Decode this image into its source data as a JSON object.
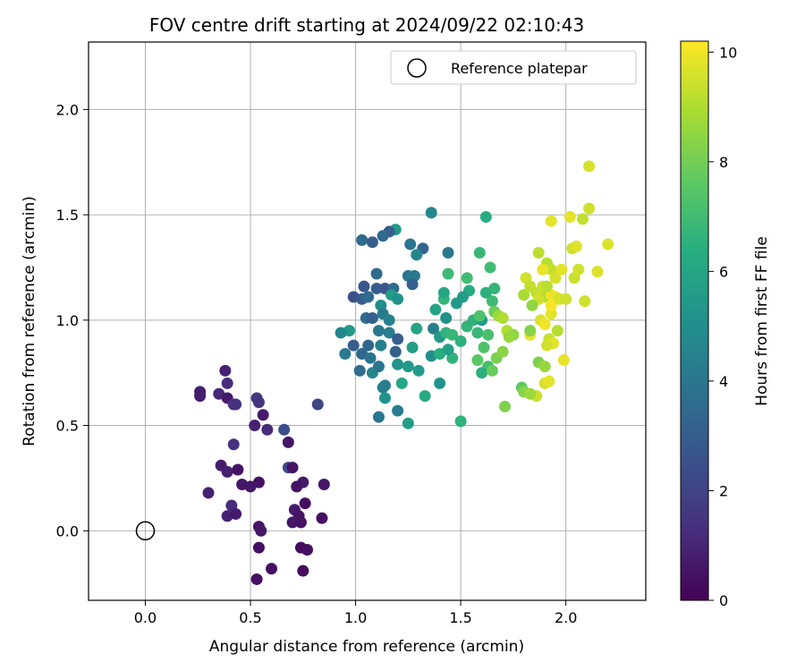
{
  "chart_data": {
    "type": "scatter",
    "title": "FOV centre drift starting at 2024/09/22 02:10:43",
    "xlabel": "Angular distance from reference (arcmin)",
    "ylabel": "Rotation from reference (arcmin)",
    "xlim": [
      -0.27,
      2.38
    ],
    "ylim": [
      -0.33,
      2.32
    ],
    "xticks": [
      "0.0",
      "0.5",
      "1.0",
      "1.5",
      "2.0"
    ],
    "yticks": [
      "0.0",
      "0.5",
      "1.0",
      "1.5",
      "2.0"
    ],
    "grid": true,
    "colormap": "viridis",
    "colorbar": {
      "label": "Hours from first FF file",
      "range": [
        0,
        10.2
      ],
      "ticks": [
        "0",
        "2",
        "4",
        "6",
        "8",
        "10"
      ]
    },
    "legend": {
      "position": "top-right",
      "entries": [
        "Reference platepar"
      ]
    },
    "reference_point": {
      "name": "Reference platepar",
      "x": 0.0,
      "y": 0.0,
      "marker": "open-circle"
    },
    "series": [
      {
        "points": [
          {
            "x": 0.26,
            "y": 0.66,
            "c": 0.8
          },
          {
            "x": 0.26,
            "y": 0.64,
            "c": 0.8
          },
          {
            "x": 0.35,
            "y": 0.65,
            "c": 1.1
          },
          {
            "x": 0.38,
            "y": 0.76,
            "c": 0.9
          },
          {
            "x": 0.39,
            "y": 0.7,
            "c": 1.2
          },
          {
            "x": 0.39,
            "y": 0.63,
            "c": 0.7
          },
          {
            "x": 0.43,
            "y": 0.6,
            "c": 1.5
          },
          {
            "x": 0.42,
            "y": 0.6,
            "c": 1.4
          },
          {
            "x": 0.42,
            "y": 0.41,
            "c": 1.4
          },
          {
            "x": 0.53,
            "y": 0.63,
            "c": 1.6
          },
          {
            "x": 0.54,
            "y": 0.61,
            "c": 1.5
          },
          {
            "x": 0.52,
            "y": 0.5,
            "c": 0.9
          },
          {
            "x": 0.56,
            "y": 0.55,
            "c": 0.7
          },
          {
            "x": 0.58,
            "y": 0.48,
            "c": 1.2
          },
          {
            "x": 0.66,
            "y": 0.48,
            "c": 2.4
          },
          {
            "x": 0.82,
            "y": 0.6,
            "c": 2.1
          },
          {
            "x": 0.68,
            "y": 0.42,
            "c": 0.6
          },
          {
            "x": 0.68,
            "y": 0.3,
            "c": 2.3
          },
          {
            "x": 0.7,
            "y": 0.3,
            "c": 0.5
          },
          {
            "x": 0.75,
            "y": 0.23,
            "c": 0.7
          },
          {
            "x": 0.72,
            "y": 0.21,
            "c": 0.5
          },
          {
            "x": 0.85,
            "y": 0.22,
            "c": 0.6
          },
          {
            "x": 0.36,
            "y": 0.31,
            "c": 0.8
          },
          {
            "x": 0.39,
            "y": 0.28,
            "c": 0.9
          },
          {
            "x": 0.44,
            "y": 0.29,
            "c": 0.5
          },
          {
            "x": 0.3,
            "y": 0.18,
            "c": 0.9
          },
          {
            "x": 0.46,
            "y": 0.22,
            "c": 0.6
          },
          {
            "x": 0.5,
            "y": 0.21,
            "c": 0.6
          },
          {
            "x": 0.54,
            "y": 0.23,
            "c": 0.5
          },
          {
            "x": 0.41,
            "y": 0.12,
            "c": 1.2
          },
          {
            "x": 0.39,
            "y": 0.07,
            "c": 0.9
          },
          {
            "x": 0.43,
            "y": 0.08,
            "c": 0.7
          },
          {
            "x": 0.71,
            "y": 0.1,
            "c": 0.7
          },
          {
            "x": 0.76,
            "y": 0.13,
            "c": 0.4
          },
          {
            "x": 0.73,
            "y": 0.07,
            "c": 0.5
          },
          {
            "x": 0.7,
            "y": 0.04,
            "c": 0.6
          },
          {
            "x": 0.74,
            "y": 0.04,
            "c": 0.5
          },
          {
            "x": 0.84,
            "y": 0.06,
            "c": 0.4
          },
          {
            "x": 0.54,
            "y": 0.02,
            "c": 0.5
          },
          {
            "x": 0.55,
            "y": 0.0,
            "c": 0.6
          },
          {
            "x": 0.54,
            "y": -0.08,
            "c": 0.4
          },
          {
            "x": 0.74,
            "y": -0.08,
            "c": 0.3
          },
          {
            "x": 0.77,
            "y": -0.09,
            "c": 0.4
          },
          {
            "x": 0.6,
            "y": -0.18,
            "c": 0.4
          },
          {
            "x": 0.75,
            "y": -0.19,
            "c": 0.3
          },
          {
            "x": 0.53,
            "y": -0.23,
            "c": 0.4
          },
          {
            "x": 1.36,
            "y": 1.51,
            "c": 4.6
          },
          {
            "x": 1.19,
            "y": 1.43,
            "c": 5.4
          },
          {
            "x": 1.16,
            "y": 1.42,
            "c": 3.0
          },
          {
            "x": 1.13,
            "y": 1.4,
            "c": 3.5
          },
          {
            "x": 1.03,
            "y": 1.38,
            "c": 3.5
          },
          {
            "x": 1.08,
            "y": 1.37,
            "c": 3.0
          },
          {
            "x": 1.26,
            "y": 1.36,
            "c": 4.0
          },
          {
            "x": 1.32,
            "y": 1.34,
            "c": 3.3
          },
          {
            "x": 1.29,
            "y": 1.31,
            "c": 4.6
          },
          {
            "x": 1.1,
            "y": 1.22,
            "c": 3.6
          },
          {
            "x": 1.25,
            "y": 1.21,
            "c": 4.0
          },
          {
            "x": 1.28,
            "y": 1.21,
            "c": 4.1
          },
          {
            "x": 1.27,
            "y": 1.17,
            "c": 3.2
          },
          {
            "x": 1.04,
            "y": 1.16,
            "c": 2.8
          },
          {
            "x": 1.1,
            "y": 1.15,
            "c": 3.0
          },
          {
            "x": 1.14,
            "y": 1.15,
            "c": 2.7
          },
          {
            "x": 1.18,
            "y": 1.15,
            "c": 3.5
          },
          {
            "x": 0.99,
            "y": 1.11,
            "c": 2.5
          },
          {
            "x": 1.03,
            "y": 1.1,
            "c": 3.0
          },
          {
            "x": 1.06,
            "y": 1.11,
            "c": 3.5
          },
          {
            "x": 1.17,
            "y": 1.12,
            "c": 5.6
          },
          {
            "x": 1.2,
            "y": 1.1,
            "c": 5.2
          },
          {
            "x": 1.12,
            "y": 1.07,
            "c": 4.9
          },
          {
            "x": 1.05,
            "y": 1.01,
            "c": 3.6
          },
          {
            "x": 1.08,
            "y": 1.01,
            "c": 3.1
          },
          {
            "x": 1.13,
            "y": 1.03,
            "c": 4.2
          },
          {
            "x": 1.16,
            "y": 1.0,
            "c": 4.5
          },
          {
            "x": 0.97,
            "y": 0.95,
            "c": 5.4
          },
          {
            "x": 0.93,
            "y": 0.94,
            "c": 4.7
          },
          {
            "x": 1.11,
            "y": 0.95,
            "c": 4.1
          },
          {
            "x": 1.16,
            "y": 0.94,
            "c": 4.3
          },
          {
            "x": 1.2,
            "y": 0.91,
            "c": 3.0
          },
          {
            "x": 0.99,
            "y": 0.88,
            "c": 3.0
          },
          {
            "x": 1.06,
            "y": 0.88,
            "c": 3.3
          },
          {
            "x": 1.12,
            "y": 0.88,
            "c": 4.4
          },
          {
            "x": 1.03,
            "y": 0.84,
            "c": 3.4
          },
          {
            "x": 1.07,
            "y": 0.82,
            "c": 3.9
          },
          {
            "x": 0.95,
            "y": 0.84,
            "c": 4.2
          },
          {
            "x": 1.02,
            "y": 0.76,
            "c": 3.6
          },
          {
            "x": 1.08,
            "y": 0.75,
            "c": 4.6
          },
          {
            "x": 1.11,
            "y": 0.78,
            "c": 4.0
          },
          {
            "x": 1.19,
            "y": 0.85,
            "c": 3.1
          },
          {
            "x": 1.2,
            "y": 0.79,
            "c": 5.2
          },
          {
            "x": 1.25,
            "y": 0.78,
            "c": 5.5
          },
          {
            "x": 1.13,
            "y": 0.68,
            "c": 4.4
          },
          {
            "x": 1.14,
            "y": 0.69,
            "c": 4.3
          },
          {
            "x": 1.14,
            "y": 0.63,
            "c": 5.2
          },
          {
            "x": 1.22,
            "y": 0.7,
            "c": 6.1
          },
          {
            "x": 1.2,
            "y": 0.57,
            "c": 4.2
          },
          {
            "x": 1.11,
            "y": 0.54,
            "c": 4.0
          },
          {
            "x": 1.25,
            "y": 0.51,
            "c": 5.6
          },
          {
            "x": 1.33,
            "y": 0.64,
            "c": 6.3
          },
          {
            "x": 1.4,
            "y": 0.7,
            "c": 5.2
          },
          {
            "x": 1.5,
            "y": 0.52,
            "c": 6.6
          },
          {
            "x": 1.27,
            "y": 0.87,
            "c": 5.7
          },
          {
            "x": 1.3,
            "y": 0.76,
            "c": 5.5
          },
          {
            "x": 1.36,
            "y": 0.83,
            "c": 5.0
          },
          {
            "x": 1.4,
            "y": 0.84,
            "c": 6.4
          },
          {
            "x": 1.29,
            "y": 0.96,
            "c": 5.9
          },
          {
            "x": 1.37,
            "y": 0.96,
            "c": 4.3
          },
          {
            "x": 1.4,
            "y": 0.92,
            "c": 5.5
          },
          {
            "x": 1.43,
            "y": 0.94,
            "c": 6.6
          },
          {
            "x": 1.46,
            "y": 0.93,
            "c": 6.8
          },
          {
            "x": 1.5,
            "y": 0.9,
            "c": 6.5
          },
          {
            "x": 1.43,
            "y": 1.01,
            "c": 5.2
          },
          {
            "x": 1.48,
            "y": 1.08,
            "c": 5.5
          },
          {
            "x": 1.53,
            "y": 0.97,
            "c": 6.7
          },
          {
            "x": 1.56,
            "y": 1.0,
            "c": 6.6
          },
          {
            "x": 1.6,
            "y": 1.0,
            "c": 5.5
          },
          {
            "x": 1.58,
            "y": 0.94,
            "c": 6.8
          },
          {
            "x": 1.63,
            "y": 0.93,
            "c": 7.2
          },
          {
            "x": 1.59,
            "y": 1.02,
            "c": 7.3
          },
          {
            "x": 1.54,
            "y": 1.14,
            "c": 6.3
          },
          {
            "x": 1.51,
            "y": 1.11,
            "c": 5.6
          },
          {
            "x": 1.42,
            "y": 1.1,
            "c": 6.7
          },
          {
            "x": 1.42,
            "y": 1.13,
            "c": 6.1
          },
          {
            "x": 1.38,
            "y": 1.05,
            "c": 5.9
          },
          {
            "x": 1.44,
            "y": 1.22,
            "c": 6.9
          },
          {
            "x": 1.53,
            "y": 1.2,
            "c": 7.0
          },
          {
            "x": 1.59,
            "y": 1.32,
            "c": 6.8
          },
          {
            "x": 1.44,
            "y": 1.32,
            "c": 4.1
          },
          {
            "x": 1.62,
            "y": 1.49,
            "c": 6.3
          },
          {
            "x": 1.62,
            "y": 1.13,
            "c": 6.5
          },
          {
            "x": 1.65,
            "y": 1.09,
            "c": 6.9
          },
          {
            "x": 1.66,
            "y": 1.04,
            "c": 7.9
          },
          {
            "x": 1.68,
            "y": 1.02,
            "c": 8.7
          },
          {
            "x": 1.7,
            "y": 1.01,
            "c": 9.0
          },
          {
            "x": 1.64,
            "y": 1.25,
            "c": 7.0
          },
          {
            "x": 1.66,
            "y": 1.15,
            "c": 6.7
          },
          {
            "x": 1.61,
            "y": 0.87,
            "c": 7.3
          },
          {
            "x": 1.58,
            "y": 0.81,
            "c": 7.5
          },
          {
            "x": 1.63,
            "y": 0.78,
            "c": 7.1
          },
          {
            "x": 1.6,
            "y": 0.75,
            "c": 6.5
          },
          {
            "x": 1.65,
            "y": 0.76,
            "c": 7.8
          },
          {
            "x": 1.67,
            "y": 0.82,
            "c": 8.1
          },
          {
            "x": 1.7,
            "y": 0.85,
            "c": 8.4
          },
          {
            "x": 1.71,
            "y": 0.59,
            "c": 8.2
          },
          {
            "x": 1.72,
            "y": 0.95,
            "c": 9.0
          },
          {
            "x": 1.75,
            "y": 0.93,
            "c": 8.5
          },
          {
            "x": 1.46,
            "y": 0.82,
            "c": 6.6
          },
          {
            "x": 1.44,
            "y": 0.86,
            "c": 5.8
          },
          {
            "x": 1.79,
            "y": 0.68,
            "c": 7.6
          },
          {
            "x": 1.8,
            "y": 0.66,
            "c": 8.3
          },
          {
            "x": 1.86,
            "y": 0.64,
            "c": 9.4
          },
          {
            "x": 1.9,
            "y": 0.7,
            "c": 9.6
          },
          {
            "x": 1.92,
            "y": 0.71,
            "c": 9.8
          },
          {
            "x": 1.83,
            "y": 0.65,
            "c": 8.7
          },
          {
            "x": 1.87,
            "y": 0.8,
            "c": 8.2
          },
          {
            "x": 1.9,
            "y": 0.78,
            "c": 8.6
          },
          {
            "x": 1.99,
            "y": 0.81,
            "c": 9.9
          },
          {
            "x": 1.83,
            "y": 0.93,
            "c": 9.8
          },
          {
            "x": 1.83,
            "y": 0.95,
            "c": 8.3
          },
          {
            "x": 1.92,
            "y": 0.91,
            "c": 9.4
          },
          {
            "x": 1.94,
            "y": 0.89,
            "c": 9.8
          },
          {
            "x": 1.96,
            "y": 0.95,
            "c": 9.1
          },
          {
            "x": 1.91,
            "y": 0.88,
            "c": 9.5
          },
          {
            "x": 1.88,
            "y": 1.0,
            "c": 9.7
          },
          {
            "x": 1.9,
            "y": 0.98,
            "c": 10.0
          },
          {
            "x": 1.93,
            "y": 1.03,
            "c": 9.8
          },
          {
            "x": 1.9,
            "y": 1.11,
            "c": 9.0
          },
          {
            "x": 1.86,
            "y": 1.13,
            "c": 9.3
          },
          {
            "x": 1.87,
            "y": 1.1,
            "c": 9.5
          },
          {
            "x": 1.93,
            "y": 1.12,
            "c": 10.0
          },
          {
            "x": 1.95,
            "y": 1.11,
            "c": 9.9
          },
          {
            "x": 1.93,
            "y": 1.07,
            "c": 10.1
          },
          {
            "x": 1.97,
            "y": 1.1,
            "c": 9.6
          },
          {
            "x": 2.0,
            "y": 1.1,
            "c": 9.5
          },
          {
            "x": 1.84,
            "y": 1.07,
            "c": 8.5
          },
          {
            "x": 1.8,
            "y": 1.12,
            "c": 8.9
          },
          {
            "x": 1.81,
            "y": 1.2,
            "c": 9.5
          },
          {
            "x": 1.83,
            "y": 1.16,
            "c": 9.3
          },
          {
            "x": 1.89,
            "y": 1.16,
            "c": 9.4
          },
          {
            "x": 1.91,
            "y": 1.16,
            "c": 9.2
          },
          {
            "x": 1.91,
            "y": 1.27,
            "c": 9.1
          },
          {
            "x": 1.93,
            "y": 1.24,
            "c": 9.3
          },
          {
            "x": 1.95,
            "y": 1.2,
            "c": 9.6
          },
          {
            "x": 1.98,
            "y": 1.24,
            "c": 9.8
          },
          {
            "x": 1.89,
            "y": 1.24,
            "c": 9.9
          },
          {
            "x": 1.87,
            "y": 1.32,
            "c": 9.2
          },
          {
            "x": 2.03,
            "y": 1.34,
            "c": 9.5
          },
          {
            "x": 2.05,
            "y": 1.35,
            "c": 9.7
          },
          {
            "x": 2.04,
            "y": 1.2,
            "c": 9.4
          },
          {
            "x": 2.06,
            "y": 1.24,
            "c": 9.5
          },
          {
            "x": 1.93,
            "y": 1.47,
            "c": 9.8
          },
          {
            "x": 2.02,
            "y": 1.49,
            "c": 9.8
          },
          {
            "x": 2.08,
            "y": 1.48,
            "c": 9.3
          },
          {
            "x": 2.11,
            "y": 1.53,
            "c": 9.5
          },
          {
            "x": 2.11,
            "y": 1.73,
            "c": 9.6
          },
          {
            "x": 2.15,
            "y": 1.23,
            "c": 9.7
          },
          {
            "x": 2.09,
            "y": 1.09,
            "c": 9.5
          },
          {
            "x": 2.2,
            "y": 1.36,
            "c": 9.7
          },
          {
            "x": 1.73,
            "y": 0.92,
            "c": 8.6
          }
        ]
      }
    ]
  }
}
